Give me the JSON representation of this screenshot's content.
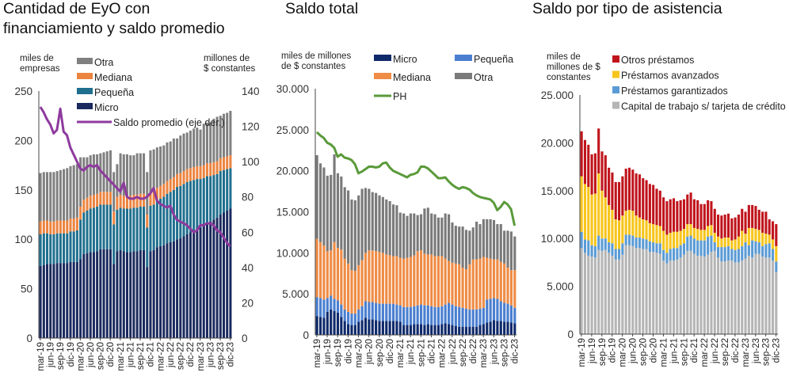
{
  "chart_data": [
    {
      "type": "bar",
      "stacked": true,
      "title_lines": [
        "Cantidad de EyO con",
        "financiamiento y saldo promedio"
      ],
      "ylabel_lines": [
        "miles de",
        "empresas"
      ],
      "ylabel_right_lines": [
        "millones de",
        "$ constantes"
      ],
      "ylim": [
        0,
        250
      ],
      "ylim_right": [
        0,
        140
      ],
      "y_ticks": [
        "0",
        "50",
        "100",
        "150",
        "200",
        "250"
      ],
      "y_ticks_right": [
        "0",
        "20",
        "40",
        "60",
        "80",
        "100",
        "120",
        "140"
      ],
      "x_ticks": [
        "mar-19",
        "jun-19",
        "sep-19",
        "dic-19",
        "mar-20",
        "jun-20",
        "sep-20",
        "dic-20",
        "mar-21",
        "jun-21",
        "sep-21",
        "dic-21",
        "mar-22",
        "jun-22",
        "sep-22",
        "dic-22",
        "mar-23",
        "jun-23",
        "sep-23",
        "dic-23"
      ],
      "frequency": "monthly",
      "legend": "top-left",
      "series": [
        {
          "name": "Micro",
          "kind": "bar",
          "color": "#1b2a5e",
          "values": [
            73,
            74,
            75,
            75,
            75,
            76,
            76,
            76,
            76,
            77,
            77,
            77,
            80,
            85,
            86,
            87,
            87,
            88,
            90,
            90,
            90,
            90,
            75,
            88,
            89,
            88,
            87,
            87,
            88,
            88,
            89,
            89,
            72,
            88,
            89,
            92,
            93,
            94,
            96,
            97,
            98,
            100,
            101,
            103,
            105,
            107,
            109,
            111,
            112,
            114,
            116,
            118,
            120,
            122,
            125,
            127,
            129,
            131
          ]
        },
        {
          "name": "Pequeña",
          "kind": "bar",
          "color": "#1f6f8e",
          "values": [
            32,
            32,
            31,
            30,
            30,
            30,
            30,
            30,
            30,
            31,
            31,
            32,
            40,
            42,
            43,
            44,
            45,
            45,
            45,
            45,
            45,
            45,
            40,
            42,
            43,
            43,
            44,
            44,
            44,
            44,
            44,
            44,
            40,
            46,
            46,
            47,
            48,
            49,
            50,
            51,
            52,
            53,
            53,
            53,
            53,
            52,
            51,
            50,
            49,
            48,
            48,
            46,
            45,
            44,
            44,
            43,
            42,
            41
          ]
        },
        {
          "name": "Mediana",
          "kind": "bar",
          "color": "#ec8440",
          "values": [
            13,
            13,
            13,
            13,
            13,
            13,
            13,
            13,
            13,
            13,
            13,
            13,
            13,
            13,
            13,
            13,
            13,
            13,
            13,
            13,
            13,
            13,
            13,
            13,
            13,
            13,
            13,
            13,
            13,
            13,
            13,
            13,
            13,
            13,
            13,
            13,
            13,
            13,
            13,
            13,
            13,
            13,
            13,
            13,
            13,
            13,
            13,
            13,
            13,
            13,
            13,
            13,
            13,
            13,
            13,
            13,
            13,
            13
          ]
        },
        {
          "name": "Otra",
          "kind": "bar",
          "color": "#808080",
          "values": [
            49,
            49,
            49,
            50,
            50,
            50,
            51,
            52,
            53,
            53,
            54,
            54,
            50,
            43,
            41,
            41,
            41,
            40,
            39,
            40,
            41,
            42,
            40,
            33,
            42,
            42,
            42,
            41,
            40,
            42,
            41,
            41,
            43,
            43,
            43,
            41,
            40,
            39,
            39,
            38,
            39,
            36,
            38,
            38,
            37,
            38,
            39,
            39,
            37,
            42,
            41,
            41,
            44,
            45,
            43,
            44,
            44,
            45
          ]
        },
        {
          "name": "Saldo promedio (eje der.)",
          "kind": "line",
          "axis": "right",
          "color": "#8e3a9e",
          "values": [
            131,
            128,
            124,
            121,
            116,
            118,
            130,
            117,
            115,
            108,
            104,
            100,
            96,
            95,
            97,
            98,
            97,
            98,
            95,
            93,
            91,
            89,
            87,
            85,
            83,
            88,
            80,
            79,
            79,
            80,
            79,
            79,
            80,
            82,
            85,
            78,
            76,
            75,
            74,
            75,
            70,
            67,
            66,
            65,
            64,
            62,
            60,
            61,
            64,
            64,
            65,
            65,
            64,
            61,
            60,
            57,
            54,
            52
          ]
        }
      ],
      "legend_order": [
        3,
        2,
        1,
        0,
        4
      ]
    },
    {
      "type": "bar",
      "stacked": true,
      "title_lines": [
        "Saldo total"
      ],
      "ylabel_lines": [
        "miles de millones",
        "de $ constantes"
      ],
      "ylim": [
        0,
        30000
      ],
      "y_ticks": [
        "0",
        "5.000",
        "10.000",
        "15.000",
        "20.000",
        "25.000",
        "30.000"
      ],
      "x_ticks": [
        "mar-19",
        "jun-19",
        "sep-19",
        "dic-19",
        "mar-20",
        "jun-20",
        "sep-20",
        "dic-20",
        "mar-21",
        "jun-21",
        "sep-21",
        "dic-21",
        "mar-22",
        "jun-22",
        "sep-22",
        "dic-22",
        "mar-23",
        "jun-23",
        "sep-23",
        "dic-23"
      ],
      "frequency": "monthly",
      "legend": "top",
      "series": [
        {
          "name": "Micro",
          "kind": "bar",
          "color": "#0f2a6b",
          "values": [
            2300,
            2200,
            2100,
            2800,
            3100,
            2900,
            2700,
            2200,
            1700,
            1300,
            1200,
            1200,
            1600,
            1800,
            2100,
            1900,
            1900,
            1800,
            1700,
            1700,
            1700,
            1700,
            1700,
            1700,
            1600,
            1200,
            1200,
            1200,
            1300,
            1300,
            1300,
            1200,
            1300,
            1200,
            1200,
            1200,
            1300,
            1400,
            1300,
            1200,
            1100,
            1000,
            1000,
            1000,
            1000,
            1000,
            1000,
            1200,
            1300,
            1500,
            1600,
            1800,
            1700,
            1700,
            1600,
            1600,
            1500,
            1400
          ]
        },
        {
          "name": "Pequeña",
          "kind": "bar",
          "color": "#4a7fd0",
          "values": [
            2300,
            2300,
            2200,
            1700,
            1700,
            1500,
            1500,
            1500,
            1400,
            1500,
            1400,
            1400,
            1500,
            1700,
            2000,
            2100,
            2100,
            2100,
            2100,
            2100,
            2100,
            2100,
            2100,
            2000,
            2000,
            2200,
            2200,
            2200,
            2200,
            2300,
            2400,
            2400,
            2300,
            2300,
            2200,
            2200,
            2200,
            2300,
            2600,
            2500,
            2400,
            2400,
            2300,
            2200,
            2100,
            2100,
            2100,
            2000,
            2000,
            2800,
            2800,
            2700,
            2700,
            2400,
            2300,
            2200,
            2100,
            1900
          ]
        },
        {
          "name": "Mediana",
          "kind": "bar",
          "color": "#ef8c45",
          "values": [
            7100,
            6800,
            6600,
            5700,
            5500,
            6900,
            6400,
            6700,
            6200,
            5900,
            5300,
            5200,
            5400,
            5600,
            5900,
            6300,
            6300,
            6300,
            6300,
            6200,
            6000,
            5900,
            5800,
            5900,
            5800,
            5900,
            6000,
            6100,
            6200,
            6600,
            6600,
            6300,
            6200,
            6300,
            6200,
            6200,
            6100,
            5600,
            5100,
            5100,
            5200,
            5200,
            4900,
            4800,
            5500,
            6100,
            6100,
            6100,
            6200,
            5100,
            4900,
            4700,
            4800,
            4800,
            4800,
            4400,
            4300,
            4600
          ]
        },
        {
          "name": "Otra",
          "kind": "bar",
          "color": "#7a7a7a",
          "values": [
            10200,
            9600,
            9500,
            9200,
            9200,
            10700,
            9100,
            8900,
            8700,
            8900,
            8600,
            8600,
            8500,
            8700,
            7900,
            7500,
            7100,
            7100,
            6900,
            6800,
            6700,
            6600,
            6300,
            6200,
            5500,
            5500,
            5100,
            5300,
            5100,
            4400,
            4400,
            5500,
            5700,
            5000,
            5100,
            4700,
            4700,
            5500,
            5700,
            4900,
            4600,
            4600,
            5000,
            4800,
            4100,
            3900,
            4600,
            4200,
            4600,
            4700,
            4800,
            4800,
            4300,
            4600,
            4000,
            4500,
            4700,
            4100
          ]
        },
        {
          "name": "PH",
          "kind": "line",
          "color": "#5a9a3a",
          "values": [
            24700,
            24300,
            24000,
            23400,
            23200,
            22800,
            21700,
            22000,
            21600,
            21500,
            21300,
            20800,
            19700,
            19900,
            20200,
            20500,
            20500,
            20400,
            20500,
            20900,
            21000,
            20400,
            20000,
            19800,
            19600,
            19400,
            19200,
            19500,
            19600,
            19800,
            20500,
            20500,
            20300,
            19900,
            19500,
            19100,
            19100,
            19200,
            18700,
            18300,
            18000,
            17800,
            18000,
            17900,
            17700,
            17300,
            17000,
            16800,
            16700,
            16600,
            16500,
            16100,
            15200,
            15600,
            16200,
            15900,
            15300,
            13300
          ]
        }
      ],
      "legend_order": [
        0,
        1,
        2,
        3,
        4
      ]
    },
    {
      "type": "bar",
      "stacked": true,
      "title_lines": [
        "Saldo por tipo de asistencia"
      ],
      "ylabel_lines": [
        "miles de",
        "millones de $",
        "constantes"
      ],
      "ylim": [
        0,
        25000
      ],
      "y_ticks": [
        "0",
        "5.000",
        "10.000",
        "15.000",
        "20.000",
        "25.000"
      ],
      "x_ticks": [
        "mar-19",
        "jun-19",
        "sep-19",
        "dic-19",
        "mar-20",
        "jun-20",
        "sep-20",
        "dic-20",
        "mar-21",
        "jun-21",
        "sep-21",
        "dic-21",
        "mar-22",
        "jun-22",
        "sep-22",
        "dic-22",
        "mar-23",
        "jun-23",
        "sep-23",
        "dic-23"
      ],
      "frequency": "monthly",
      "legend": "top",
      "series": [
        {
          "name": "Capital de trabajo s/ tarjeta de crédito",
          "kind": "bar",
          "color": "#b5b5b5",
          "values": [
            9000,
            8500,
            8200,
            8100,
            8000,
            8800,
            8700,
            8800,
            8500,
            8200,
            7800,
            7800,
            8300,
            9300,
            9300,
            9200,
            9000,
            9000,
            8900,
            8900,
            8600,
            8600,
            8500,
            8400,
            7700,
            7400,
            7700,
            7700,
            7800,
            8000,
            8300,
            8700,
            8700,
            8400,
            8200,
            8200,
            8100,
            8300,
            8600,
            8700,
            8000,
            7600,
            7600,
            7700,
            7700,
            7500,
            7500,
            7700,
            7900,
            8200,
            8000,
            8400,
            8400,
            8100,
            8000,
            8000,
            7700,
            6500
          ]
        },
        {
          "name": "Préstamos garantizados",
          "kind": "bar",
          "color": "#5b9bd5",
          "values": [
            1700,
            1400,
            1600,
            1200,
            1200,
            1500,
            1300,
            1200,
            1100,
            1300,
            1100,
            1100,
            1200,
            1100,
            1100,
            1100,
            1100,
            1100,
            1100,
            1000,
            1100,
            1000,
            1000,
            1100,
            1100,
            1100,
            1200,
            1300,
            1200,
            1300,
            1200,
            1500,
            1600,
            1600,
            1600,
            1600,
            1700,
            1900,
            1700,
            900,
            1100,
            1500,
            1500,
            1500,
            1200,
            1300,
            1400,
            1500,
            1700,
            1100,
            1800,
            1300,
            1200,
            1100,
            1400,
            1500,
            1200,
            1100
          ]
        },
        {
          "name": "Préstamos avanzados",
          "kind": "bar",
          "color": "#f7c51c",
          "values": [
            5800,
            5800,
            5600,
            5300,
            5500,
            6500,
            5000,
            4300,
            3900,
            3500,
            3100,
            3000,
            2900,
            2500,
            2600,
            2600,
            2300,
            2100,
            2000,
            2000,
            1900,
            1900,
            1900,
            1800,
            2000,
            1900,
            1700,
            1700,
            1700,
            1500,
            1500,
            1300,
            1200,
            1100,
            1200,
            1100,
            1100,
            1100,
            1100,
            1000,
            1100,
            900,
            1000,
            900,
            900,
            1100,
            1300,
            1600,
            900,
            1800,
            1300,
            1300,
            1300,
            1400,
            1100,
            900,
            1000,
            1600
          ]
        },
        {
          "name": "Otros préstamos",
          "kind": "bar",
          "color": "#c0141c",
          "values": [
            4700,
            4600,
            4400,
            4200,
            4200,
            4700,
            4100,
            4400,
            3900,
            3900,
            3900,
            4000,
            4100,
            4400,
            4400,
            4300,
            4400,
            4500,
            4300,
            4200,
            4100,
            4100,
            3800,
            3700,
            3500,
            3500,
            3500,
            3500,
            3200,
            3200,
            3100,
            3100,
            3300,
            3000,
            3000,
            2700,
            2700,
            2700,
            2500,
            2500,
            2300,
            2400,
            2400,
            2500,
            2300,
            2300,
            2300,
            2300,
            2300,
            2400,
            2400,
            2400,
            2100,
            2200,
            2300,
            1600,
            1900,
            2300
          ]
        }
      ],
      "legend_order": [
        3,
        2,
        1,
        0
      ]
    }
  ]
}
